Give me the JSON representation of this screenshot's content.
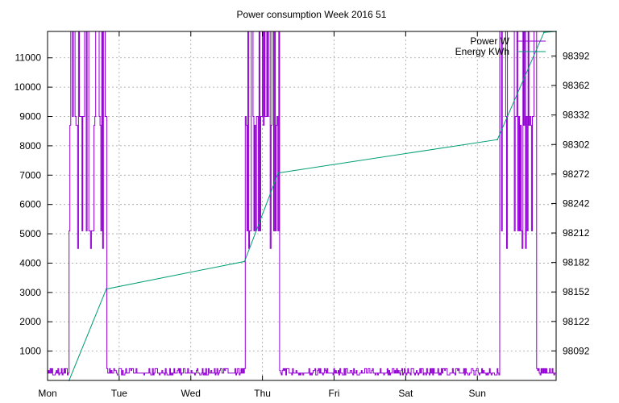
{
  "chart_data": {
    "type": "line",
    "title": "Power consumption Week 2016 51",
    "xlabel": "",
    "ylabel": "",
    "y2label": "",
    "x_categories": [
      "Mon",
      "Tue",
      "Wed",
      "Thu",
      "Fri",
      "Sat",
      "Sun"
    ],
    "xlim": [
      0,
      7.1
    ],
    "ylim": [
      0,
      11900
    ],
    "y_ticks": [
      1000,
      2000,
      3000,
      4000,
      5000,
      6000,
      7000,
      8000,
      9000,
      10000,
      11000
    ],
    "y2lim": [
      98062,
      98417
    ],
    "y2_ticks": [
      98092,
      98122,
      98152,
      98182,
      98212,
      98242,
      98272,
      98302,
      98332,
      98362,
      98392
    ],
    "grid": true,
    "legend": "top-right",
    "colors": {
      "power": "#9400d3",
      "energy": "#009e73"
    },
    "series": [
      {
        "name": "Power W",
        "axis": "left",
        "baseline": 250,
        "bursts": [
          {
            "start": 0.3,
            "end": 0.82,
            "low": 5100,
            "high": 9000,
            "peak": 11900
          },
          {
            "start": 2.75,
            "end": 3.24,
            "low": 5100,
            "high": 9000,
            "peak": 11900
          },
          {
            "start": 6.3,
            "end": 6.82,
            "low": 5100,
            "high": 9000,
            "peak": 11900
          }
        ]
      },
      {
        "name": "Energy KWh",
        "axis": "right",
        "x": [
          0.3,
          0.82,
          2.75,
          3.22,
          6.28,
          6.93,
          7.1
        ],
        "y": [
          98062,
          98155,
          98183,
          98273,
          98307,
          98416,
          98417
        ]
      }
    ]
  }
}
